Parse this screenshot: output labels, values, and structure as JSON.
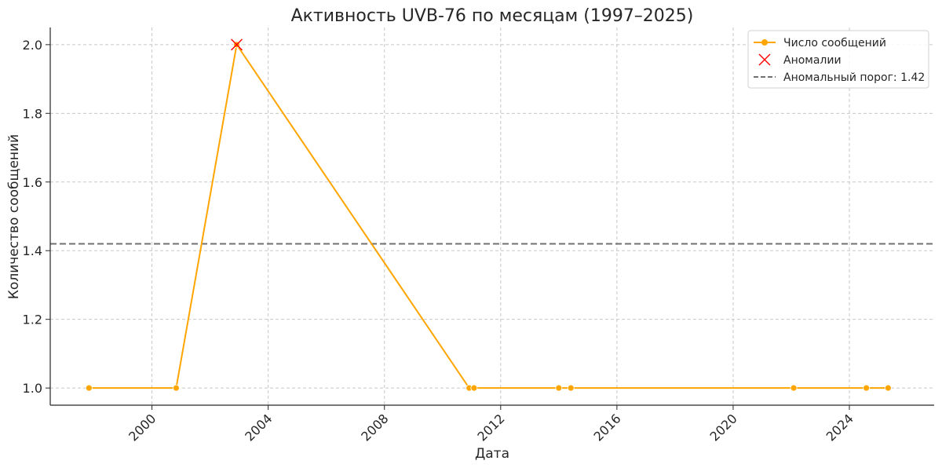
{
  "chart_data": {
    "type": "line",
    "title": "Активность UVB-76 по месяцам (1997–2025)",
    "xlabel": "Дата",
    "ylabel": "Количество сообщений",
    "x_ticks": [
      "2000",
      "2004",
      "2008",
      "2012",
      "2016",
      "2020",
      "2024"
    ],
    "y_ticks": [
      "1.0",
      "1.2",
      "1.4",
      "1.6",
      "1.8",
      "2.0"
    ],
    "xlim": [
      "1996-07",
      "2026-12"
    ],
    "ylim": [
      0.95,
      2.05
    ],
    "grid": true,
    "legend_position": "top-right",
    "series": [
      {
        "name": "Число сообщений",
        "color": "#FFA500",
        "marker": "circle",
        "points": [
          {
            "x": "1997-11",
            "y": 1
          },
          {
            "x": "2000-11",
            "y": 1
          },
          {
            "x": "2002-12",
            "y": 2
          },
          {
            "x": "2010-12",
            "y": 1
          },
          {
            "x": "2011-02",
            "y": 1
          },
          {
            "x": "2014-01",
            "y": 1
          },
          {
            "x": "2014-06",
            "y": 1
          },
          {
            "x": "2022-02",
            "y": 1
          },
          {
            "x": "2024-08",
            "y": 1
          },
          {
            "x": "2025-05",
            "y": 1
          }
        ]
      }
    ],
    "anomalies": {
      "name": "Аномалии",
      "color": "#FF0000",
      "marker": "x",
      "points": [
        {
          "x": "2002-12",
          "y": 2
        }
      ]
    },
    "threshold": {
      "name": "Аномальный порог: 1.42",
      "value": 1.42,
      "color": "#707070",
      "style": "dashed"
    }
  }
}
